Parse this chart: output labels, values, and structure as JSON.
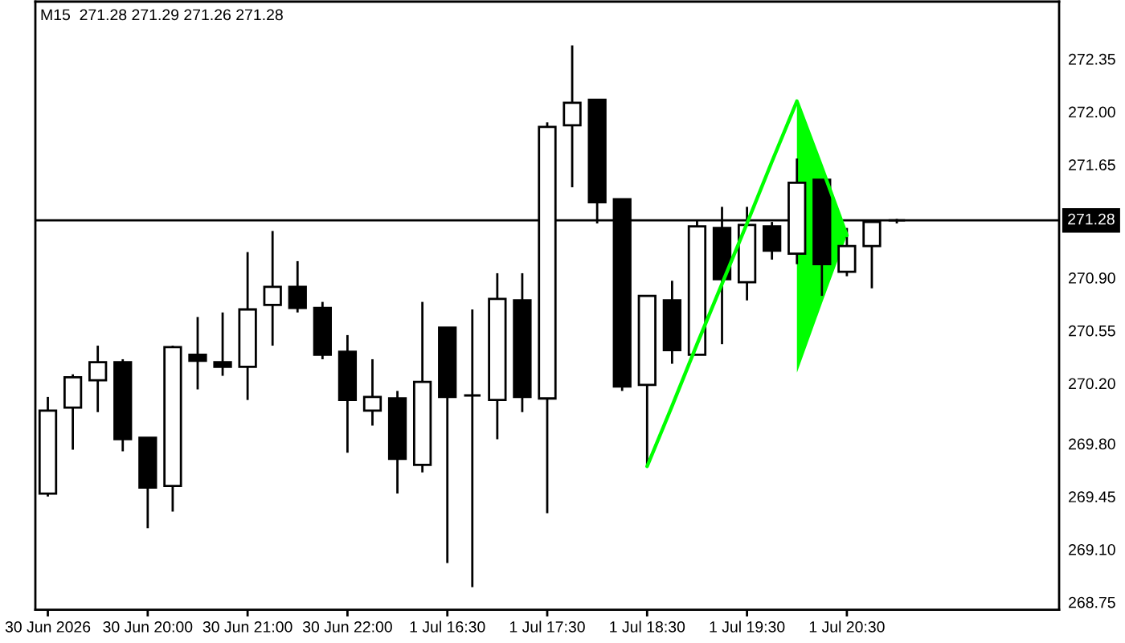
{
  "chart_data": {
    "type": "candlestick",
    "title": "M15  271.28 271.29 271.26 271.28",
    "categories": [
      "30 Jun 2026",
      null,
      null,
      null,
      "30 Jun 20:00",
      null,
      null,
      null,
      "30 Jun 21:00",
      null,
      null,
      null,
      "30 Jun 22:00",
      null,
      null,
      null,
      "1 Jul 16:30",
      null,
      null,
      null,
      "1 Jul 17:30",
      null,
      null,
      null,
      "1 Jul 18:30",
      null,
      null,
      null,
      "1 Jul 19:30",
      null,
      null,
      null,
      "1 Jul 20:30",
      null,
      null,
      null,
      null,
      null,
      null,
      null,
      null
    ],
    "ohlc": [
      [
        269.47,
        270.11,
        269.45,
        270.02
      ],
      [
        270.04,
        270.26,
        269.76,
        270.24
      ],
      [
        270.22,
        270.45,
        270.01,
        270.34
      ],
      [
        270.34,
        270.36,
        269.75,
        269.83
      ],
      [
        269.84,
        269.84,
        269.24,
        269.51
      ],
      [
        269.52,
        270.45,
        269.35,
        270.44
      ],
      [
        270.39,
        270.64,
        270.16,
        270.35
      ],
      [
        270.34,
        270.67,
        270.25,
        270.31
      ],
      [
        270.31,
        271.07,
        270.09,
        270.69
      ],
      [
        270.72,
        271.21,
        270.45,
        270.84
      ],
      [
        270.84,
        271.01,
        270.67,
        270.7
      ],
      [
        270.7,
        270.74,
        270.36,
        270.39
      ],
      [
        270.41,
        270.52,
        269.74,
        270.09
      ],
      [
        270.02,
        270.36,
        269.92,
        270.11
      ],
      [
        270.1,
        270.15,
        269.47,
        269.7
      ],
      [
        269.66,
        270.74,
        269.61,
        270.21
      ],
      [
        270.57,
        270.57,
        269.01,
        270.11
      ],
      [
        270.12,
        270.69,
        268.85,
        270.12
      ],
      [
        270.09,
        270.93,
        269.83,
        270.76
      ],
      [
        270.75,
        270.93,
        270.01,
        270.11
      ],
      [
        270.1,
        271.93,
        269.34,
        271.9
      ],
      [
        271.91,
        272.44,
        271.5,
        272.06
      ],
      [
        272.08,
        272.08,
        271.26,
        271.4
      ],
      [
        271.42,
        271.42,
        270.15,
        270.18
      ],
      [
        270.19,
        270.78,
        269.65,
        270.78
      ],
      [
        270.75,
        270.88,
        270.33,
        270.42
      ],
      [
        270.39,
        271.28,
        270.39,
        271.24
      ],
      [
        271.23,
        271.37,
        270.46,
        270.89
      ],
      [
        270.87,
        271.37,
        270.75,
        271.25
      ],
      [
        271.24,
        271.27,
        271.02,
        271.08
      ],
      [
        271.06,
        271.69,
        270.99,
        271.53
      ],
      [
        271.55,
        271.55,
        270.78,
        270.99
      ],
      [
        270.94,
        271.23,
        270.91,
        271.11
      ],
      [
        271.11,
        271.28,
        270.83,
        271.27
      ],
      [
        271.28,
        271.29,
        271.26,
        271.28
      ],
      null,
      null,
      null,
      null,
      null,
      null
    ],
    "series": [
      {
        "type": "line",
        "color": "#00ff00",
        "values": [
          null,
          null,
          null,
          null,
          null,
          null,
          null,
          null,
          null,
          null,
          null,
          null,
          null,
          null,
          null,
          null,
          null,
          null,
          null,
          null,
          null,
          null,
          null,
          null,
          269.65,
          270.05,
          270.46,
          270.86,
          271.26,
          271.67,
          272.07,
          271.63,
          271.18,
          null,
          null,
          null,
          null,
          null,
          null,
          null,
          null
        ],
        "lower": [
          null,
          null,
          null,
          null,
          null,
          null,
          null,
          null,
          null,
          null,
          null,
          null,
          null,
          null,
          null,
          null,
          null,
          null,
          null,
          null,
          null,
          null,
          null,
          null,
          null,
          null,
          null,
          null,
          null,
          null,
          270.27,
          270.73,
          271.18,
          null,
          null,
          null,
          null,
          null,
          null,
          null,
          null
        ],
        "upper": [
          null,
          null,
          null,
          null,
          null,
          null,
          null,
          null,
          null,
          null,
          null,
          null,
          null,
          null,
          null,
          null,
          null,
          null,
          null,
          null,
          null,
          null,
          null,
          null,
          null,
          null,
          null,
          null,
          null,
          null,
          272.07,
          271.63,
          271.18,
          null,
          null,
          null,
          null,
          null,
          null,
          null,
          null
        ]
      }
    ],
    "ylim": [
      268.7,
      272.73
    ],
    "yticks": [
      {
        "value": 272.35,
        "label": "272.35"
      },
      {
        "value": 272.0,
        "label": "272.00"
      },
      {
        "value": 271.65,
        "label": "271.65"
      },
      {
        "value": 270.9,
        "label": "270.90"
      },
      {
        "value": 270.55,
        "label": "270.55"
      },
      {
        "value": 270.2,
        "label": "270.20"
      },
      {
        "value": 269.8,
        "label": "269.80"
      },
      {
        "value": 269.45,
        "label": "269.45"
      },
      {
        "value": 269.1,
        "label": "269.10"
      },
      {
        "value": 268.75,
        "label": "268.75"
      }
    ],
    "ref_lines": [
      {
        "axis": "y",
        "value": 271.28,
        "label": "271.28",
        "color": "#000000"
      }
    ]
  }
}
